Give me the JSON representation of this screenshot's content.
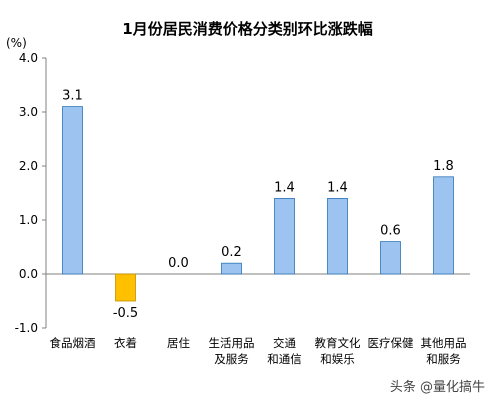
{
  "chart_data": {
    "type": "bar",
    "title": "1月份居民消费价格分类别环比涨跌幅",
    "ylabel": "(%)",
    "xlabel": "",
    "ylim": [
      -1.0,
      4.0
    ],
    "yticks": [
      "4.0",
      "3.0",
      "2.0",
      "1.0",
      "0.0",
      "-1.0"
    ],
    "ytick_values": [
      4.0,
      3.0,
      2.0,
      1.0,
      0.0,
      -1.0
    ],
    "categories": [
      [
        "食品烟酒"
      ],
      [
        "衣着"
      ],
      [
        "居住"
      ],
      [
        "生活用品",
        "及服务"
      ],
      [
        "交通",
        "和通信"
      ],
      [
        "教育文化",
        "和娱乐"
      ],
      [
        "医疗保健"
      ],
      [
        "其他用品",
        "和服务"
      ]
    ],
    "values": [
      3.1,
      -0.5,
      0.0,
      0.2,
      1.4,
      1.4,
      0.6,
      1.8
    ],
    "value_labels": [
      "3.1",
      "-0.5",
      "0.0",
      "0.2",
      "1.4",
      "1.4",
      "0.6",
      "1.8"
    ],
    "grid": false,
    "colors": {
      "positive": "#9DC3F0",
      "negative": "#FFC000",
      "edge": "#2E75B6",
      "axis": "#808080"
    }
  },
  "watermark": "头条 @量化搞牛"
}
